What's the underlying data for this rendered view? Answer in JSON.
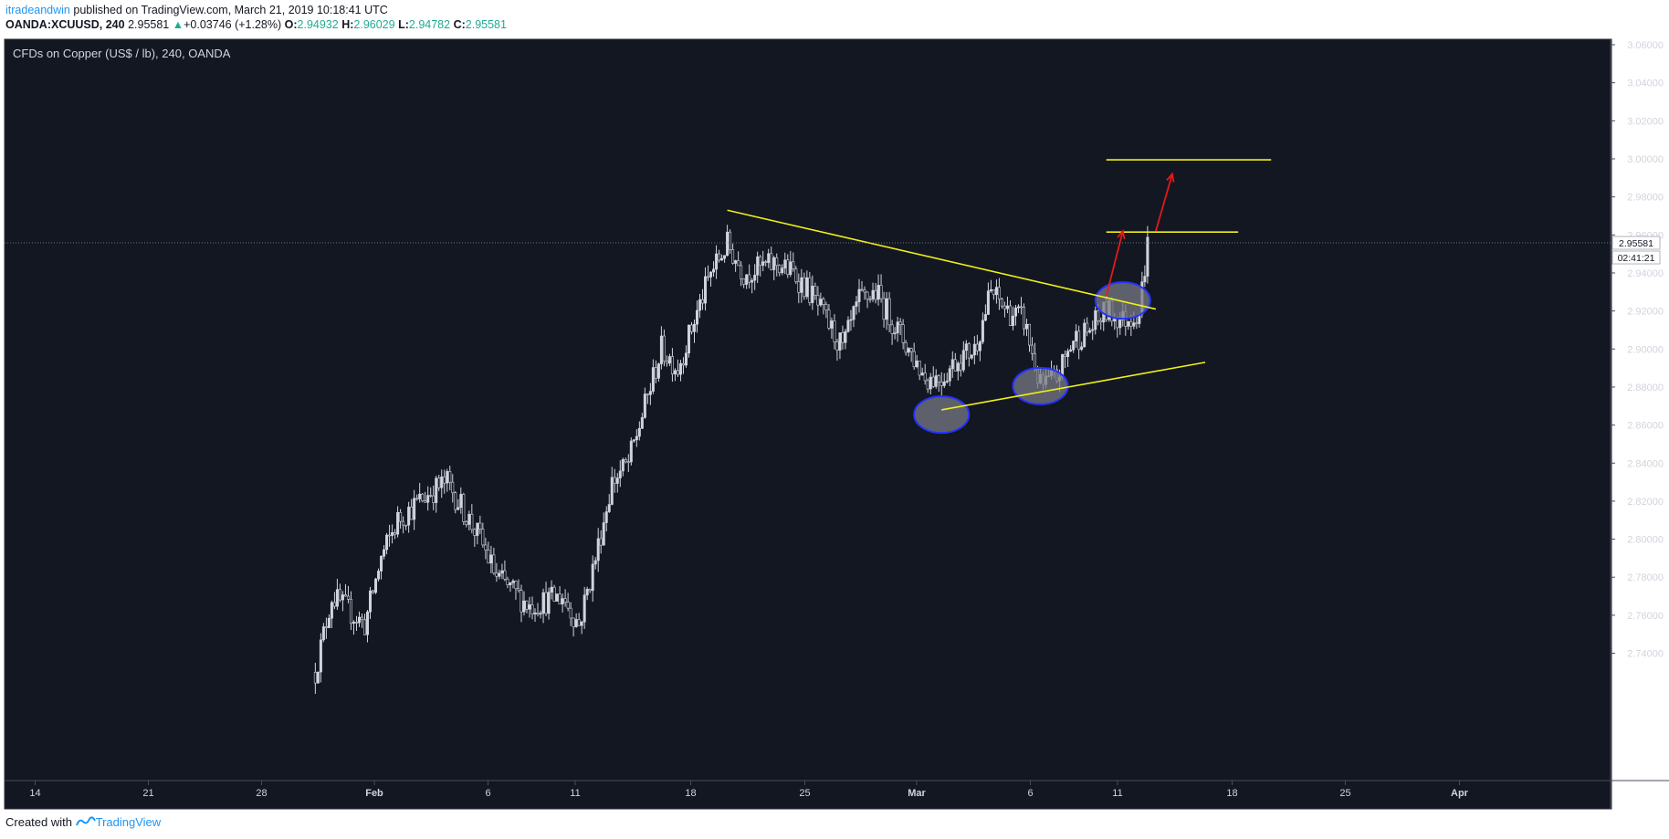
{
  "header": {
    "author": "itradeandwin",
    "published_text": "published on TradingView.com, March 21, 2019 10:18:41 UTC",
    "symbol": "OANDA:XCUUSD, 240",
    "last": "2.95581",
    "change": "+0.03746 (+1.28%)",
    "o_label": "O:",
    "o": "2.94932",
    "h_label": "H:",
    "h": "2.96029",
    "l_label": "L:",
    "l": "2.94782",
    "c_label": "C:",
    "c": "2.95581"
  },
  "footer": {
    "created": "Created with",
    "brand": "TradingView"
  },
  "chart_data": {
    "type": "candlestick",
    "title": "CFDs on Copper (US$ / lb), 240, OANDA",
    "ylim": [
      2.73,
      3.07
    ],
    "y_ticks": [
      "3.06000",
      "3.04000",
      "3.02000",
      "3.00000",
      "2.98000",
      "2.96000",
      "2.94000",
      "2.92000",
      "2.90000",
      "2.88000",
      "2.86000",
      "2.84000",
      "2.82000",
      "2.80000",
      "2.78000",
      "2.76000",
      "2.74000"
    ],
    "x_axis": [
      "14",
      "21",
      "28",
      "Feb",
      "6",
      "11",
      "18",
      "25",
      "Mar",
      "6",
      "11",
      "18",
      "25",
      "Apr"
    ],
    "bold_x_ticks": [
      "Feb",
      "Mar",
      "Apr"
    ],
    "last_price_label": "2.95581",
    "countdown_label": "02:41:21",
    "anchors": [
      {
        "date": "Jan 31",
        "price": 2.73
      },
      {
        "date": "Feb 1",
        "price": 2.77
      },
      {
        "date": "Feb 3",
        "price": 2.755
      },
      {
        "date": "Feb 4",
        "price": 2.79
      },
      {
        "date": "Feb 5",
        "price": 2.81
      },
      {
        "date": "Feb 7",
        "price": 2.825
      },
      {
        "date": "Feb 8",
        "price": 2.83
      },
      {
        "date": "Feb 10",
        "price": 2.8
      },
      {
        "date": "Feb 11",
        "price": 2.78
      },
      {
        "date": "Feb 13",
        "price": 2.765
      },
      {
        "date": "Feb 15",
        "price": 2.77
      },
      {
        "date": "Feb 16",
        "price": 2.755
      },
      {
        "date": "Feb 17",
        "price": 2.79
      },
      {
        "date": "Feb 18",
        "price": 2.83
      },
      {
        "date": "Feb 19",
        "price": 2.84
      },
      {
        "date": "Feb 20",
        "price": 2.87
      },
      {
        "date": "Feb 21",
        "price": 2.9
      },
      {
        "date": "Feb 22",
        "price": 2.89
      },
      {
        "date": "Feb 24",
        "price": 2.94
      },
      {
        "date": "Feb 25",
        "price": 2.955
      },
      {
        "date": "Feb 26",
        "price": 2.94
      },
      {
        "date": "Feb 28",
        "price": 2.945
      },
      {
        "date": "Mar 1",
        "price": 2.94
      },
      {
        "date": "Mar 2",
        "price": 2.93
      },
      {
        "date": "Mar 4",
        "price": 2.9
      },
      {
        "date": "Mar 5",
        "price": 2.925
      },
      {
        "date": "Mar 6",
        "price": 2.93
      },
      {
        "date": "Mar 7",
        "price": 2.915
      },
      {
        "date": "Mar 8",
        "price": 2.9
      },
      {
        "date": "Mar 9",
        "price": 2.885
      },
      {
        "date": "Mar 10",
        "price": 2.885
      },
      {
        "date": "Mar 11",
        "price": 2.895
      },
      {
        "date": "Mar 12",
        "price": 2.9
      },
      {
        "date": "Mar 13",
        "price": 2.93
      },
      {
        "date": "Mar 14",
        "price": 2.92
      },
      {
        "date": "Mar 15",
        "price": 2.915
      },
      {
        "date": "Mar 16",
        "price": 2.88
      },
      {
        "date": "Mar 17",
        "price": 2.885
      },
      {
        "date": "Mar 18",
        "price": 2.905
      },
      {
        "date": "Mar 19",
        "price": 2.91
      },
      {
        "date": "Mar 20",
        "price": 2.92
      },
      {
        "date": "Mar 21",
        "price": 2.915
      },
      {
        "date": "Mar 22",
        "price": 2.92
      },
      {
        "date": "Mar 22 12:00",
        "price": 2.955
      }
    ],
    "drawings": {
      "trendlines": [
        {
          "from": {
            "date": "Feb 25",
            "price": 2.973
          },
          "to": {
            "date": "Mar 23",
            "price": 2.921
          }
        },
        {
          "from": {
            "date": "Mar 10",
            "price": 2.868
          },
          "to": {
            "date": "Mar 26",
            "price": 2.893
          }
        }
      ],
      "horizontal_lines": [
        {
          "from": "Mar 20",
          "to": "Mar 30",
          "price": 2.9995
        },
        {
          "from": "Mar 20",
          "to": "Mar 28",
          "price": 2.9615
        }
      ],
      "arrows": [
        {
          "from": {
            "date": "Mar 20",
            "price": 2.928
          },
          "to": {
            "date": "Mar 21",
            "price": 2.962
          }
        },
        {
          "from": {
            "date": "Mar 23",
            "price": 2.962
          },
          "to": {
            "date": "Mar 24",
            "price": 2.992
          }
        }
      ],
      "ellipses": [
        {
          "date": "Mar 10",
          "price": 2.8655
        },
        {
          "date": "Mar 16",
          "price": 2.8805
        },
        {
          "date": "Mar 21",
          "price": 2.9255
        }
      ]
    },
    "colors": {
      "background": "#131722",
      "candle": "#d1d4dc",
      "drawing_line": "#f0f018",
      "arrow": "#e61919",
      "ellipse_fill": "#787b86",
      "ellipse_stroke": "#2533ff"
    }
  }
}
